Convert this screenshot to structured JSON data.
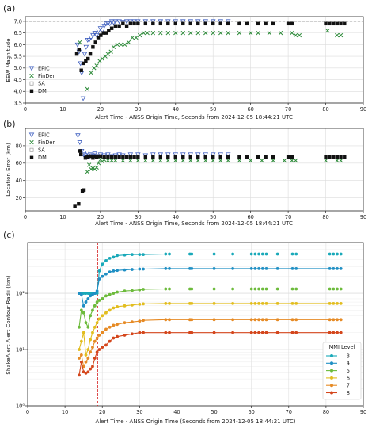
{
  "chart_data": [
    {
      "panel": "(a)",
      "type": "scatter",
      "xlabel": "Alert Time - ANSS Origin Time, Seconds from  2024-12-05 18:44:21 UTC",
      "ylabel": "EEW Magnitude",
      "xlim": [
        0,
        90
      ],
      "ylim": [
        3.5,
        7.2
      ],
      "xticks": [
        0,
        10,
        20,
        30,
        40,
        50,
        60,
        70,
        80,
        90
      ],
      "yticks": [
        3.5,
        4.0,
        4.5,
        5.0,
        5.5,
        6.0,
        6.5,
        7.0
      ],
      "reference_line": 7.0,
      "grid": true,
      "legend_position": "lower-left",
      "series": [
        {
          "name": "EPIC",
          "marker": "triangle-down",
          "color": "#4060c0",
          "x": [
            13.9,
            14.3,
            14.7,
            15.0,
            15.4,
            15.8,
            16.2,
            16.6,
            17.0,
            17.5,
            18.0,
            18.5,
            19.0,
            19.5,
            20.0,
            20.5,
            21.0,
            21.5,
            22.0,
            22.5,
            23.0,
            23.5,
            24.0,
            25.0,
            26.0,
            27.0,
            28.0,
            29.0,
            30.0,
            32.0,
            34.0,
            36.0,
            38.0,
            40.0,
            42.0,
            44.0,
            46.0,
            48.0,
            50.0,
            52.0,
            54.0
          ],
          "y": [
            6.0,
            5.7,
            5.2,
            4.8,
            3.7,
            5.6,
            5.9,
            6.2,
            6.2,
            6.3,
            6.4,
            6.5,
            6.4,
            6.6,
            6.7,
            6.6,
            6.8,
            6.9,
            6.9,
            6.9,
            7.0,
            6.95,
            7.0,
            7.0,
            6.98,
            7.0,
            7.0,
            7.0,
            7.0,
            7.0,
            7.0,
            7.0,
            7.0,
            7.0,
            7.0,
            7.0,
            7.0,
            7.0,
            7.0,
            7.0,
            7.0
          ]
        },
        {
          "name": "FinDer",
          "marker": "x",
          "color": "#2e8b3a",
          "x": [
            14.5,
            16.5,
            17.5,
            18.3,
            19.0,
            19.8,
            20.5,
            21.3,
            22.0,
            22.8,
            23.5,
            24.5,
            25.5,
            26.5,
            27.5,
            28.5,
            29.5,
            30.5,
            31.5,
            32.5,
            34.0,
            36.0,
            38.0,
            40.0,
            42.0,
            44.0,
            46.0,
            48.0,
            50.0,
            52.0,
            54.0,
            57.0,
            60.0,
            62.0,
            65.0,
            68.0,
            71.0,
            72.0,
            73.0,
            80.5,
            83.0,
            84.0
          ],
          "y": [
            6.1,
            4.1,
            4.8,
            5.0,
            5.1,
            5.3,
            5.4,
            5.5,
            5.6,
            5.7,
            5.9,
            6.0,
            6.0,
            6.0,
            6.1,
            6.3,
            6.3,
            6.4,
            6.5,
            6.5,
            6.5,
            6.5,
            6.5,
            6.5,
            6.5,
            6.5,
            6.5,
            6.5,
            6.5,
            6.5,
            6.5,
            6.5,
            6.5,
            6.5,
            6.5,
            6.5,
            6.5,
            6.4,
            6.4,
            6.6,
            6.4,
            6.4
          ]
        },
        {
          "name": "SA",
          "marker": "square-open",
          "color": "#999999",
          "x": [],
          "y": []
        },
        {
          "name": "DM",
          "marker": "square",
          "color": "#111111",
          "x": [
            13.7,
            14.3,
            14.9,
            15.5,
            16.1,
            16.7,
            17.3,
            18.0,
            18.7,
            19.4,
            20.1,
            20.8,
            21.5,
            22.2,
            23.0,
            24.0,
            25.0,
            26.0,
            27.0,
            28.0,
            29.0,
            30.0,
            32.0,
            34.0,
            36.0,
            38.0,
            40.0,
            42.0,
            44.0,
            46.0,
            48.0,
            50.0,
            52.0,
            54.0,
            57.0,
            59.0,
            62.0,
            64.0,
            66.0,
            70.0,
            71.0,
            80.0,
            81.0,
            82.0,
            83.0,
            84.0,
            85.0
          ],
          "y": [
            5.6,
            5.8,
            4.9,
            5.2,
            5.3,
            5.4,
            5.6,
            5.9,
            6.1,
            6.3,
            6.4,
            6.5,
            6.5,
            6.6,
            6.7,
            6.8,
            6.8,
            6.9,
            6.8,
            6.9,
            6.9,
            6.9,
            6.9,
            6.9,
            6.9,
            6.9,
            6.9,
            6.9,
            6.9,
            6.9,
            6.9,
            6.9,
            6.9,
            6.9,
            6.9,
            6.9,
            6.9,
            6.9,
            6.9,
            6.9,
            6.9,
            6.9,
            6.9,
            6.9,
            6.9,
            6.9,
            6.9
          ]
        }
      ]
    },
    {
      "panel": "(b)",
      "type": "scatter",
      "xlabel": "Alert Time - ANSS Origin Time, Seconds from  2024-12-05 18:44:21 UTC",
      "ylabel": "Location Error (km)",
      "xlim": [
        0,
        90
      ],
      "ylim": [
        5,
        100
      ],
      "xticks": [
        0,
        10,
        20,
        30,
        40,
        50,
        60,
        70,
        80,
        90
      ],
      "yticks": [
        20,
        40,
        60,
        80
      ],
      "grid": true,
      "legend_position": "upper-left",
      "series": [
        {
          "name": "EPIC",
          "marker": "triangle-down",
          "color": "#4060c0",
          "x": [
            14.0,
            14.5,
            15.0,
            15.5,
            16.0,
            16.5,
            17.0,
            17.5,
            18.0,
            18.5,
            19.0,
            20.0,
            21.0,
            22.0,
            23.0,
            24.0,
            25.0,
            26.0,
            28.0,
            30.0,
            32.0,
            34.0,
            36.0,
            38.0,
            40.0,
            42.0,
            44.0,
            46.0,
            48.0,
            50.0,
            52.0,
            54.0
          ],
          "y": [
            92,
            84,
            74,
            70,
            69,
            72,
            67,
            70,
            69,
            71,
            68,
            70,
            69,
            70,
            68,
            69,
            70,
            69,
            70,
            70,
            69,
            70,
            70,
            70,
            70,
            70,
            70,
            70,
            70,
            70,
            70,
            70
          ]
        },
        {
          "name": "FinDer",
          "marker": "x",
          "color": "#2e8b3a",
          "x": [
            16.5,
            17.0,
            17.5,
            18.0,
            18.5,
            19.0,
            19.5,
            20.0,
            20.5,
            21.0,
            22.0,
            23.0,
            24.0,
            26.0,
            28.0,
            30.0,
            32.0,
            34.0,
            36.0,
            38.0,
            40.0,
            42.0,
            44.0,
            46.0,
            48.0,
            50.0,
            52.0,
            54.0,
            57.0,
            60.0,
            63.0,
            66.0,
            69.0,
            71.0,
            72.0,
            80.0,
            83.0,
            84.0
          ],
          "y": [
            50,
            58,
            53,
            54,
            53,
            55,
            60,
            64,
            62,
            64,
            63,
            63,
            63,
            63,
            63,
            63,
            63,
            63,
            63,
            63,
            63,
            63,
            63,
            63,
            63,
            63,
            63,
            63,
            63,
            63,
            63,
            63,
            63,
            63,
            63,
            63,
            63,
            63
          ]
        },
        {
          "name": "SA",
          "marker": "square-open",
          "color": "#999999",
          "x": [],
          "y": []
        },
        {
          "name": "DM",
          "marker": "square",
          "color": "#111111",
          "x": [
            13.2,
            14.2,
            14.5,
            14.8,
            15.2,
            15.6,
            16.0,
            16.5,
            17.0,
            17.5,
            18.0,
            18.5,
            19.0,
            19.5,
            20.0,
            21.0,
            22.0,
            23.0,
            24.0,
            25.0,
            26.0,
            27.0,
            28.0,
            29.0,
            30.0,
            32.0,
            34.0,
            36.0,
            38.0,
            40.0,
            42.0,
            44.0,
            46.0,
            48.0,
            50.0,
            52.0,
            54.0,
            57.0,
            59.0,
            62.0,
            64.0,
            66.0,
            70.0,
            71.0,
            80.0,
            81.0,
            82.0,
            83.0,
            84.0,
            85.0
          ],
          "y": [
            10,
            13,
            74,
            70,
            28,
            29,
            66,
            67,
            68,
            68,
            66,
            68,
            67,
            68,
            68,
            67,
            67,
            67,
            67,
            67,
            67,
            67,
            67,
            67,
            67,
            67,
            67,
            67,
            67,
            67,
            67,
            67,
            67,
            67,
            67,
            67,
            67,
            67,
            67,
            67,
            67,
            67,
            67,
            67,
            67,
            67,
            67,
            67,
            67,
            67
          ]
        }
      ]
    },
    {
      "panel": "(c)",
      "type": "line",
      "xlabel": "Alert Time - ANSS Origin Time (Seconds from 2024-12-05 18:44:21 UTC)",
      "ylabel": "ShakeAlert Alert Contour Radii (km)",
      "xlim": [
        0,
        90
      ],
      "ylim": [
        1,
        800
      ],
      "yscale": "log",
      "xticks": [
        0,
        10,
        20,
        30,
        40,
        50,
        60,
        70,
        80,
        90
      ],
      "ytick_labels": [
        "10⁰",
        "10¹",
        "10²"
      ],
      "ytick_values": [
        1,
        10,
        100
      ],
      "vertical_line_x": 18.8,
      "grid": true,
      "legend_title": "MMI Level",
      "legend_position": "lower-right",
      "x": [
        13.8,
        14.4,
        15.0,
        15.6,
        16.2,
        16.8,
        17.4,
        18.0,
        18.6,
        19.2,
        20.0,
        21.0,
        22.0,
        23.0,
        24.0,
        26.0,
        28.0,
        30.0,
        31.0,
        37.0,
        38.0,
        43.5,
        44.0,
        50.0,
        55.0,
        60.0,
        61.0,
        62.0,
        63.0,
        64.0,
        67.0,
        71.0,
        72.0,
        81.0,
        82.0,
        83.0,
        84.0
      ],
      "series": [
        {
          "name": "3",
          "color": "#19a9b9",
          "values": [
            100,
            100,
            100,
            100,
            100,
            100,
            100,
            100,
            100,
            250,
            330,
            380,
            420,
            440,
            470,
            480,
            490,
            490,
            490,
            500,
            500,
            500,
            500,
            500,
            500,
            500,
            500,
            500,
            500,
            500,
            500,
            500,
            500,
            500,
            500,
            500,
            500
          ]
        },
        {
          "name": "4",
          "color": "#1f8fc4",
          "values": [
            100,
            95,
            60,
            70,
            80,
            90,
            95,
            100,
            110,
            180,
            200,
            220,
            240,
            250,
            255,
            260,
            265,
            270,
            270,
            275,
            275,
            275,
            275,
            275,
            275,
            275,
            275,
            275,
            275,
            275,
            275,
            275,
            275,
            275,
            275,
            275,
            275
          ]
        },
        {
          "name": "5",
          "color": "#6dbb3c",
          "values": [
            25,
            50,
            45,
            30,
            25,
            40,
            50,
            60,
            70,
            75,
            80,
            90,
            95,
            100,
            105,
            110,
            112,
            115,
            118,
            120,
            120,
            120,
            120,
            120,
            120,
            120,
            120,
            120,
            120,
            120,
            120,
            120,
            120,
            120,
            120,
            120,
            120
          ]
        },
        {
          "name": "6",
          "color": "#e2bd1e",
          "values": [
            10,
            14,
            20,
            8,
            10,
            15,
            20,
            25,
            30,
            35,
            40,
            45,
            50,
            55,
            58,
            60,
            62,
            64,
            65,
            66,
            66,
            66,
            66,
            66,
            66,
            66,
            66,
            66,
            66,
            66,
            66,
            66,
            66,
            66,
            66,
            66,
            66
          ]
        },
        {
          "name": "7",
          "color": "#e68a24",
          "values": [
            7,
            8,
            5,
            6,
            7,
            9,
            11,
            14,
            16,
            18,
            20,
            23,
            25,
            27,
            28,
            30,
            31,
            32,
            33,
            34,
            34,
            34,
            34,
            34,
            34,
            34,
            34,
            34,
            34,
            34,
            34,
            34,
            34,
            34,
            34,
            34,
            34
          ]
        },
        {
          "name": "8",
          "color": "#d4461c",
          "values": [
            3.5,
            6,
            4,
            3.8,
            4,
            4.5,
            5,
            7,
            9,
            10,
            11,
            12,
            14,
            16,
            17,
            18,
            19,
            20,
            20,
            20,
            20,
            20,
            20,
            20,
            20,
            20,
            20,
            20,
            20,
            20,
            20,
            20,
            20,
            20,
            20,
            20,
            20
          ]
        }
      ]
    }
  ]
}
